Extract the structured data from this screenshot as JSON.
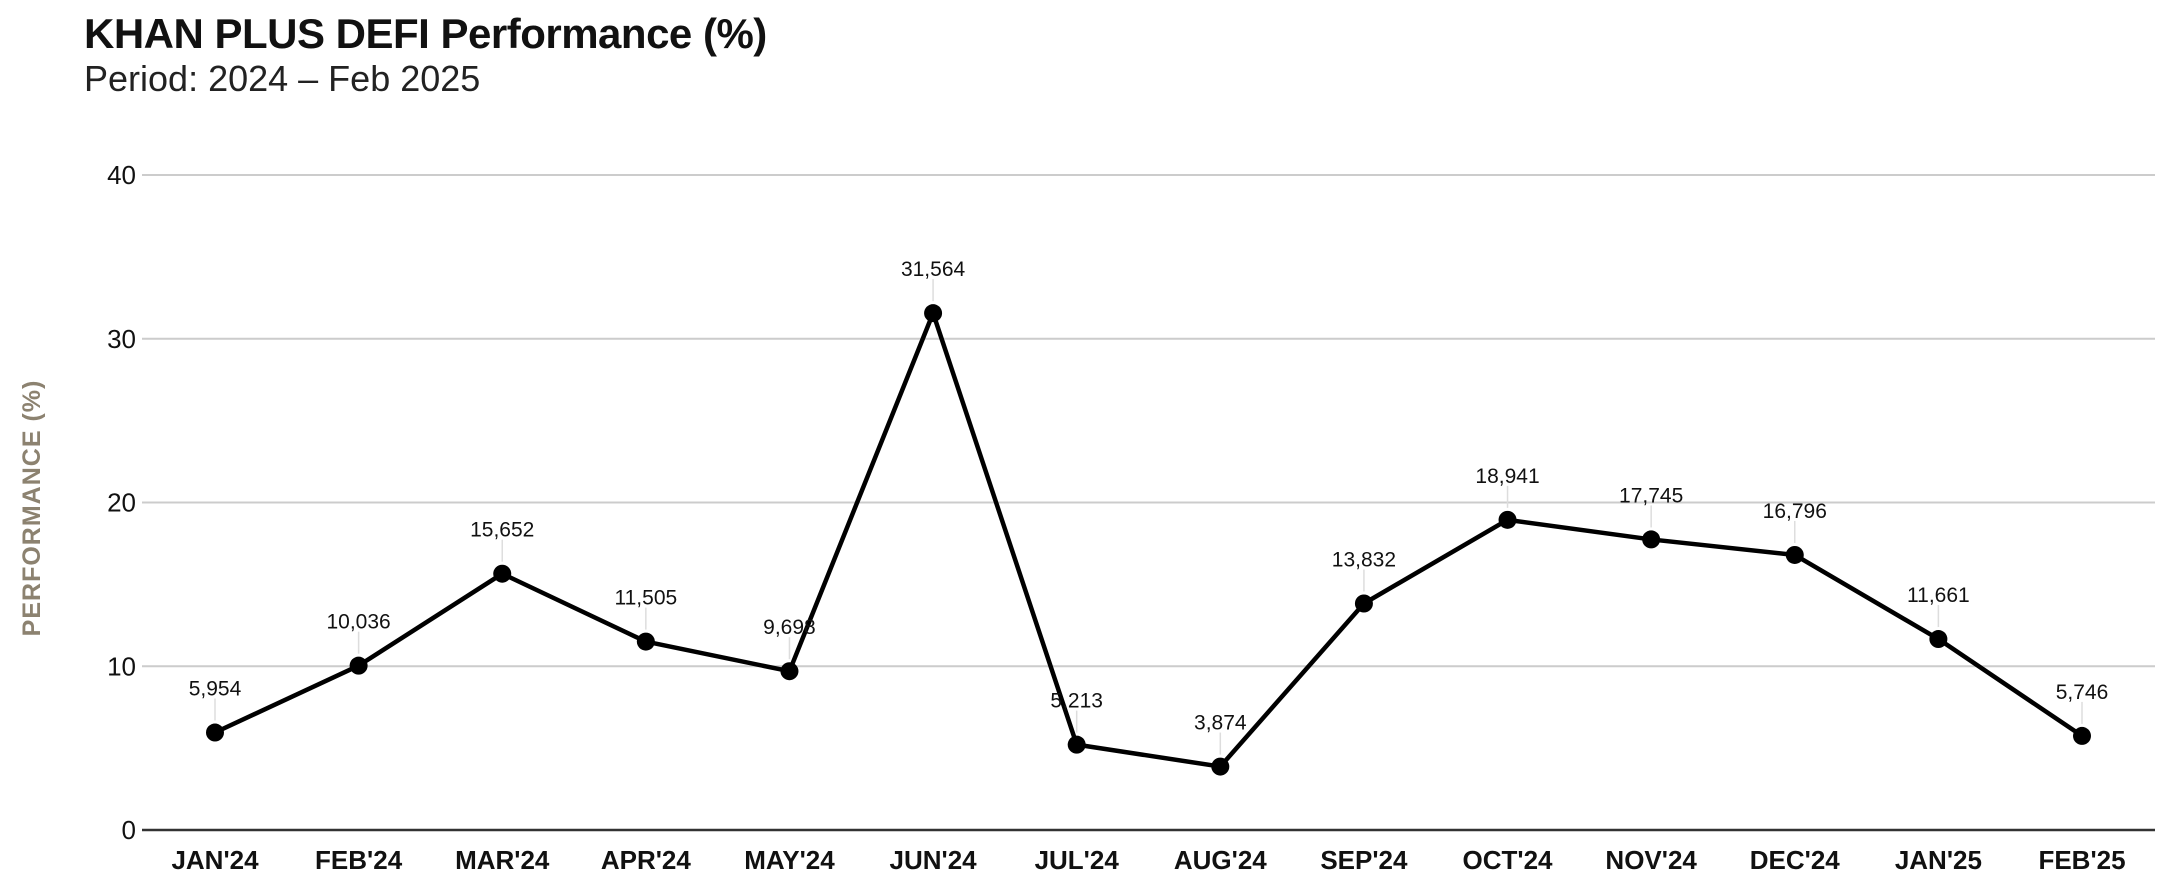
{
  "chart_data": {
    "type": "line",
    "title": "KHAN PLUS DEFI Performance (%)",
    "subtitle": "Period: 2024 – Feb 2025",
    "ylabel": "PERFORMANCE (%)",
    "xlabel": "",
    "ylim": [
      0,
      40
    ],
    "yticks": [
      0,
      10,
      20,
      30,
      40
    ],
    "grid": true,
    "categories": [
      "JAN'24",
      "FEB'24",
      "MAR'24",
      "APR'24",
      "MAY'24",
      "JUN'24",
      "JUL'24",
      "AUG'24",
      "SEP'24",
      "OCT'24",
      "NOV'24",
      "DEC'24",
      "JAN'25",
      "FEB'25"
    ],
    "values": [
      5.954,
      10.036,
      15.652,
      11.505,
      9.698,
      31.564,
      5.213,
      3.874,
      13.832,
      18.941,
      17.745,
      16.796,
      11.661,
      5.746
    ],
    "data_labels": [
      "5,954",
      "10,036",
      "15,652",
      "11,505",
      "9,698",
      "31,564",
      "5,213",
      "3,874",
      "13,832",
      "18,941",
      "17,745",
      "16,796",
      "11,661",
      "5,746"
    ],
    "colors": {
      "line": "#000000",
      "grid": "#cccccc",
      "axis": "#333333",
      "ylabel": "#8c8270",
      "leader": "#dddddd"
    }
  }
}
